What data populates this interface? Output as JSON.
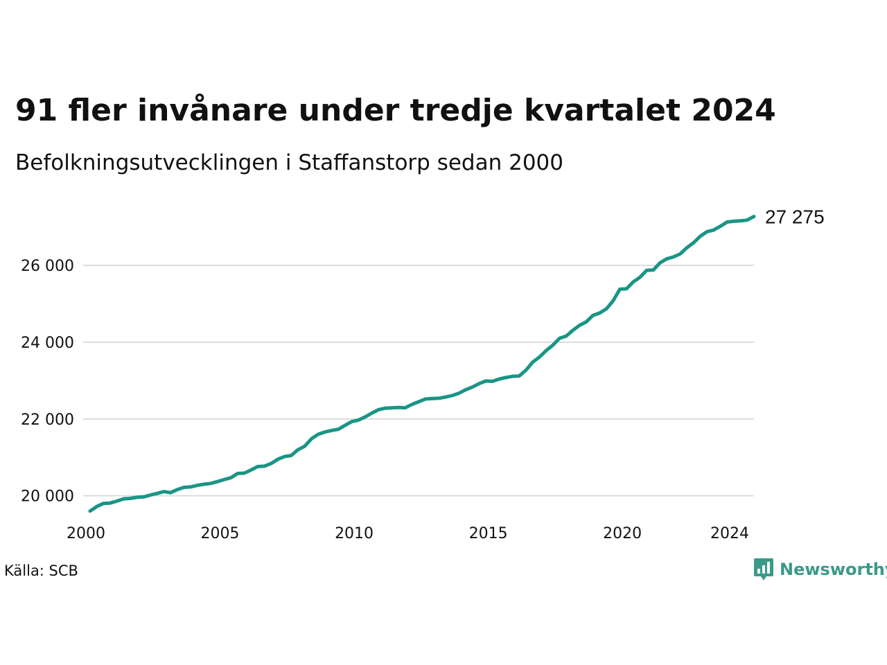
{
  "title": "91 fler invånare under tredje kvartalet 2024",
  "subtitle": "Befolkningsutvecklingen i Staffanstorp sedan 2000",
  "source": "Källa: SCB",
  "brand": {
    "name": "Newsworthy",
    "icon": "newsworthy-logo-icon",
    "color": "#3a9a88"
  },
  "chart_data": {
    "type": "line",
    "title": "91 fler invånare under tredje kvartalet 2024",
    "subtitle": "Befolkningsutvecklingen i Staffanstorp sedan 2000",
    "xlabel": "",
    "ylabel": "",
    "xlim": [
      2000,
      2024.75
    ],
    "ylim": [
      19200,
      27500
    ],
    "x_ticks": [
      2000,
      2005,
      2010,
      2015,
      2020,
      2024
    ],
    "x_tick_labels": [
      "2000",
      "2005",
      "2010",
      "2015",
      "2020",
      "2024"
    ],
    "y_ticks": [
      20000,
      22000,
      24000,
      26000
    ],
    "y_tick_labels": [
      "20 000",
      "22 000",
      "24 000",
      "26 000"
    ],
    "grid": "horizontal",
    "line_color": "#1a9585",
    "end_label": "27 275",
    "series": [
      {
        "x": [
          2000.0,
          2000.25,
          2000.5,
          2000.75,
          2001.0,
          2001.25,
          2001.5,
          2001.75,
          2002.0,
          2002.25,
          2002.5,
          2002.75,
          2003.0,
          2003.25,
          2003.5,
          2003.75,
          2004.0,
          2004.25,
          2004.5,
          2004.75,
          2005.0,
          2005.25,
          2005.5,
          2005.75,
          2006.0,
          2006.25,
          2006.5,
          2006.75,
          2007.0,
          2007.25,
          2007.5,
          2007.75,
          2008.0,
          2008.25,
          2008.5,
          2008.75,
          2009.0,
          2009.25,
          2009.5,
          2009.75,
          2010.0,
          2010.25,
          2010.5,
          2010.75,
          2011.0,
          2011.25,
          2011.5,
          2011.75,
          2012.0,
          2012.25,
          2012.5,
          2012.75,
          2013.0,
          2013.25,
          2013.5,
          2013.75,
          2014.0,
          2014.25,
          2014.5,
          2014.75,
          2015.0,
          2015.25,
          2015.5,
          2015.75,
          2016.0,
          2016.25,
          2016.5,
          2016.75,
          2017.0,
          2017.25,
          2017.5,
          2017.75,
          2018.0,
          2018.25,
          2018.5,
          2018.75,
          2019.0,
          2019.25,
          2019.5,
          2019.75,
          2020.0,
          2020.25,
          2020.5,
          2020.75,
          2021.0,
          2021.25,
          2021.5,
          2021.75,
          2022.0,
          2022.25,
          2022.5,
          2022.75,
          2023.0,
          2023.25,
          2023.5,
          2023.75,
          2024.0,
          2024.25,
          2024.5,
          2024.75
        ],
        "y": [
          19600,
          19720,
          19800,
          19810,
          19860,
          19920,
          19930,
          19960,
          19970,
          20020,
          20060,
          20110,
          20080,
          20160,
          20220,
          20230,
          20270,
          20300,
          20320,
          20370,
          20420,
          20470,
          20580,
          20590,
          20670,
          20760,
          20770,
          20840,
          20950,
          21020,
          21050,
          21200,
          21290,
          21480,
          21600,
          21660,
          21700,
          21730,
          21830,
          21930,
          21970,
          22050,
          22150,
          22240,
          22280,
          22290,
          22300,
          22290,
          22380,
          22450,
          22520,
          22530,
          22540,
          22570,
          22610,
          22670,
          22760,
          22830,
          22920,
          22990,
          22980,
          23040,
          23080,
          23110,
          23120,
          23270,
          23480,
          23610,
          23780,
          23920,
          24100,
          24160,
          24310,
          24440,
          24530,
          24700,
          24760,
          24870,
          25080,
          25380,
          25390,
          25570,
          25690,
          25870,
          25880,
          26070,
          26170,
          26220,
          26300,
          26460,
          26590,
          26760,
          26880,
          26920,
          27020,
          27130,
          27150,
          27160,
          27180,
          27275
        ]
      }
    ]
  }
}
